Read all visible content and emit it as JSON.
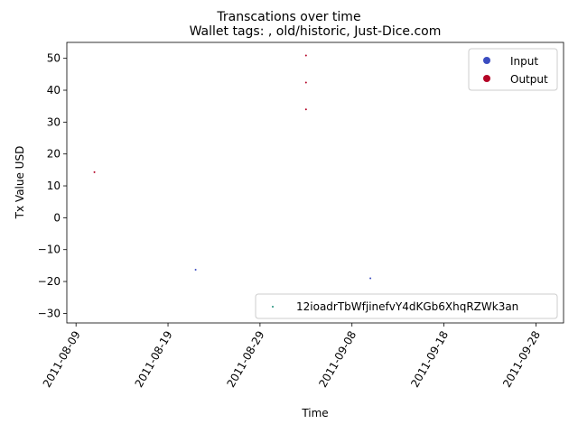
{
  "chart_data": {
    "type": "scatter",
    "suptitle": "Transcations over time",
    "title": "Wallet tags: , old/historic, Just-Dice.com",
    "xlabel": "Time",
    "ylabel": "Tx Value USD",
    "xlim": [
      "2011-08-08",
      "2011-10-01"
    ],
    "ylim": [
      -33,
      55
    ],
    "x_ticks": [
      "2011-08-09",
      "2011-08-19",
      "2011-08-29",
      "2011-09-08",
      "2011-09-18",
      "2011-09-28"
    ],
    "y_ticks": [
      -30,
      -20,
      -10,
      0,
      10,
      20,
      30,
      40,
      50
    ],
    "grid": false,
    "series": [
      {
        "name": "Input",
        "color": "#3b4cc0",
        "points": [
          {
            "x": "2011-08-22",
            "y": -16.3
          },
          {
            "x": "2011-09-10",
            "y": -19.0
          }
        ]
      },
      {
        "name": "Output",
        "color": "#b40426",
        "points": [
          {
            "x": "2011-08-11",
            "y": 14.3
          },
          {
            "x": "2011-09-03",
            "y": 50.9
          },
          {
            "x": "2011-09-03",
            "y": 42.4
          },
          {
            "x": "2011-09-03",
            "y": 34.0
          }
        ]
      }
    ],
    "legend_top": {
      "placement": "top-right",
      "entries": [
        {
          "label": "Input",
          "color": "#3b4cc0"
        },
        {
          "label": "Output",
          "color": "#b40426"
        }
      ]
    },
    "legend_bottom": {
      "placement": "bottom-right",
      "entries": [
        {
          "label": "12ioadrTbWfjinefvY4dKGb6XhqRZWk3an",
          "color": "#1f8f7a"
        }
      ]
    }
  }
}
